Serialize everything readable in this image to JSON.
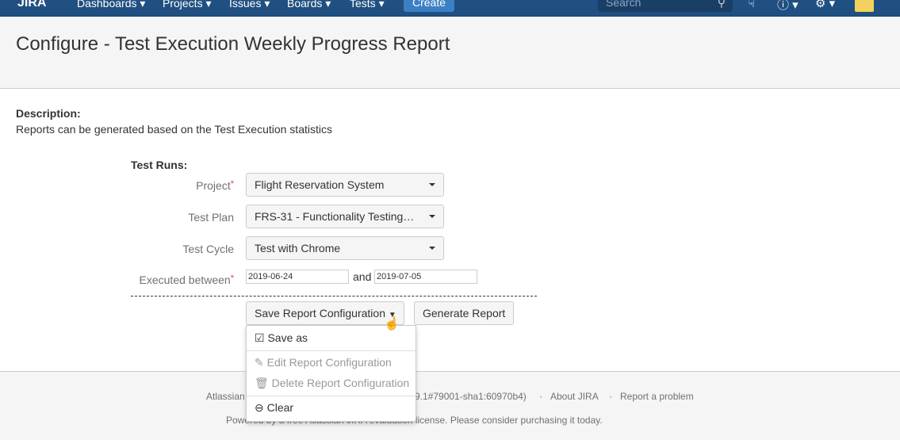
{
  "nav": {
    "logo": "JIRA",
    "items": [
      "Dashboards ▾",
      "Projects ▾",
      "Issues ▾",
      "Boards ▾",
      "Tests ▾"
    ],
    "create": "Create",
    "search_placeholder": "Search"
  },
  "page": {
    "title": "Configure - Test Execution Weekly Progress Report"
  },
  "description": {
    "label": "Description:",
    "text": "Reports can be generated based on the Test Execution statistics"
  },
  "form": {
    "section": "Test Runs:",
    "project_label": "Project",
    "project": "Flight Reservation System",
    "plan_label": "Test Plan",
    "plan": "FRS-31 - Functionality Testing…",
    "cycle_label": "Test Cycle",
    "cycle": "Test with Chrome",
    "executed_label": "Executed between",
    "from": "2019-06-24",
    "and": "and",
    "to": "2019-07-05",
    "required": "*"
  },
  "buttons": {
    "save_config": "Save Report Configuration",
    "generate": "Generate Report"
  },
  "dropdown": {
    "save_as": "Save as",
    "edit": "Edit Report Configuration",
    "delete": "Delete Report Configuration",
    "clear": "Clear"
  },
  "footer": {
    "atlassian": "Atlassian",
    "version": "9.1#79001-sha1:60970b4)",
    "sep": "·",
    "about": "About JIRA",
    "report": "Report a problem",
    "license": "Powered by a free Atlassian JIRA evaluation license. Please consider purchasing it today."
  }
}
